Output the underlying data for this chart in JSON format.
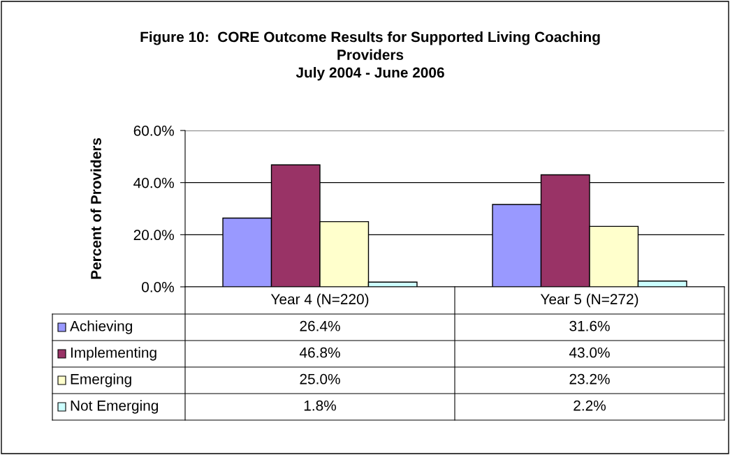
{
  "chart_data": {
    "type": "bar",
    "title": "Figure 10:  CORE Outcome Results for Supported Living Coaching\nProviders\nJuly 2004 - June 2006",
    "ylabel": "Percent of Providers",
    "categories": [
      "Year 4 (N=220)",
      "Year 5 (N=272)"
    ],
    "series": [
      {
        "name": "Achieving",
        "color": "#9999ff",
        "values": [
          26.4,
          31.6
        ],
        "value_labels": [
          "26.4%",
          "31.6%"
        ]
      },
      {
        "name": "Implementing",
        "color": "#993366",
        "values": [
          46.8,
          43.0
        ],
        "value_labels": [
          "46.8%",
          "43.0%"
        ]
      },
      {
        "name": "Emerging",
        "color": "#ffffcc",
        "values": [
          25.0,
          23.2
        ],
        "value_labels": [
          "25.0%",
          "23.2%"
        ]
      },
      {
        "name": "Not Emerging",
        "color": "#ccffff",
        "values": [
          1.8,
          2.2
        ],
        "value_labels": [
          "1.8%",
          "2.2%"
        ]
      }
    ],
    "ylim": [
      0,
      60
    ],
    "yticks": [
      {
        "value": 0,
        "label": "0.0%"
      },
      {
        "value": 20,
        "label": "20.0%"
      },
      {
        "value": 40,
        "label": "40.0%"
      },
      {
        "value": 60,
        "label": "60.0%"
      }
    ],
    "grid": "y",
    "legend": "bottom left"
  }
}
